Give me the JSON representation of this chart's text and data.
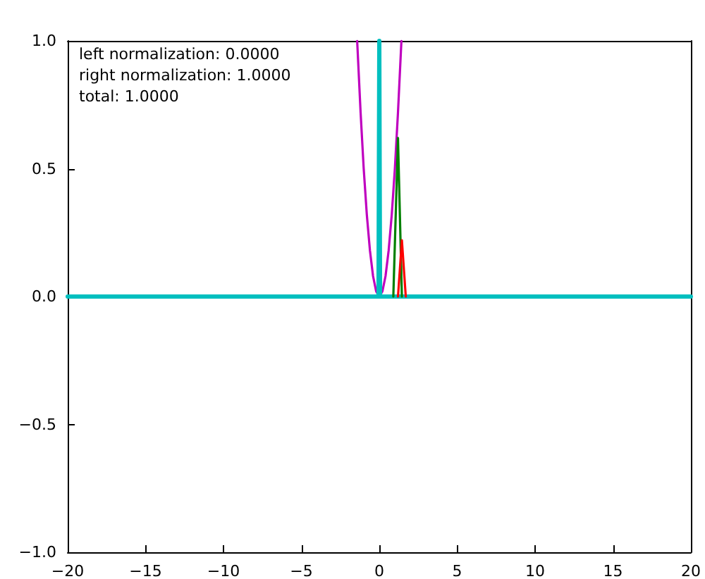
{
  "chart_data": {
    "type": "line",
    "annotations": [
      "left normalization: 0.0000",
      "right normalization: 1.0000",
      "total: 1.0000"
    ],
    "xlim": [
      -20,
      20
    ],
    "ylim": [
      -1,
      1
    ],
    "xticks": [
      {
        "value": -20,
        "label": "−20"
      },
      {
        "value": -15,
        "label": "−15"
      },
      {
        "value": -10,
        "label": "−10"
      },
      {
        "value": -5,
        "label": "−5"
      },
      0,
      5,
      10,
      15,
      20
    ],
    "yticks": [
      {
        "value": -1,
        "label": "−1.0"
      },
      {
        "value": -0.5,
        "label": "−0.5"
      },
      {
        "value": 0,
        "label": "0.0"
      },
      {
        "value": 0.5,
        "label": "0.5"
      },
      {
        "value": 1,
        "label": "1.0"
      }
    ],
    "grid": false,
    "marker": "none",
    "line_style": "solid",
    "series": [
      {
        "color": "#bf00bf",
        "x": [
          -1.42,
          -1.2,
          -1.0,
          -0.8,
          -0.6,
          -0.4,
          -0.2,
          0,
          0.2,
          0.4,
          0.6,
          0.8,
          1.0,
          1.2,
          1.42
        ],
        "values": [
          1.0,
          0.72,
          0.5,
          0.32,
          0.18,
          0.08,
          0.02,
          0,
          0.02,
          0.08,
          0.18,
          0.32,
          0.5,
          0.72,
          1.0
        ]
      },
      {
        "color": "#00bfbf",
        "x": [
          -20,
          -0.05,
          0,
          0.05,
          20
        ],
        "values": [
          0,
          0,
          1,
          0,
          0
        ]
      },
      {
        "color": "#008000",
        "x": [
          0.9,
          1.2,
          1.45
        ],
        "values": [
          0,
          0.62,
          0
        ]
      },
      {
        "color": "#ff0000",
        "x": [
          1.2,
          1.45,
          1.7
        ],
        "values": [
          0,
          0.22,
          0
        ]
      }
    ]
  }
}
